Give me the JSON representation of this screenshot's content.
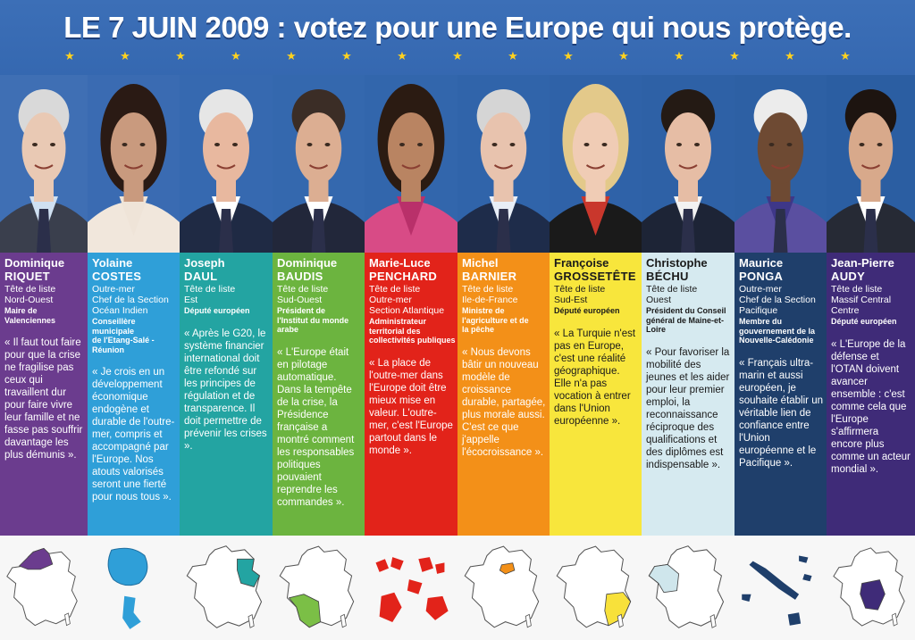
{
  "headline": "LE 7 JUIN 2009 : votez pour une Europe qui nous protège.",
  "colors": {
    "banner": "#3366b0",
    "star": "#ffd21f"
  },
  "candidates": [
    {
      "first": "Dominique",
      "last": "RIQUET",
      "info": "Tête de liste\nNord-Ouest",
      "detail": "Maire de\nValenciennes",
      "quote": "« Il faut tout faire pour que la crise ne fragilise pas ceux qui travaillent dur pour faire vivre leur famille et ne fasse pas souffrir davantage les plus démunis ».",
      "color": "#6b3c8e",
      "region_icon": "nord-ouest-region-map",
      "map_color": "#6b3c8e"
    },
    {
      "first": "Yolaine",
      "last": "COSTES",
      "info": "Outre-mer\nChef de la Section\nOcéan Indien",
      "detail": "Conseillère municipale\nde l'Etang-Salé - Réunion",
      "quote": "« Je crois en un développement économique endogène et durable de l'outre-mer, compris et accompagné par l'Europe. Nos atouts valorisés seront une fierté pour nous tous ».",
      "color": "#2f9fd8",
      "region_icon": "ocean-indien-region-map",
      "map_color": "#2f9fd8"
    },
    {
      "first": "Joseph",
      "last": "DAUL",
      "info": "Tête de liste\nEst",
      "detail": "Député européen",
      "quote": "« Après le G20, le système financier international doit être refondé sur les principes de régulation et de transparence. Il doit permettre de prévenir les crises ».",
      "color": "#23a4a2",
      "region_icon": "est-region-map",
      "map_color": "#23a4a2"
    },
    {
      "first": "Dominique",
      "last": "BAUDIS",
      "info": "Tête de liste\nSud-Ouest",
      "detail": "Président de\nl'Institut du monde\narabe",
      "quote": "« L'Europe était en pilotage automatique. Dans la tempête de la crise, la Présidence française a montré comment les responsables politiques pouvaient reprendre les commandes ».",
      "color": "#6cb43f",
      "region_icon": "sud-ouest-region-map",
      "map_color": "#7bbf46"
    },
    {
      "first": "Marie-Luce",
      "last": "PENCHARD",
      "info": "Tête de liste\nOutre-mer\nSection Atlantique",
      "detail": "Administrateur\nterritorial des\ncollectivités publiques",
      "quote": "« La place de l'outre-mer dans l'Europe doit être mieux mise en valeur. L'outre-mer, c'est l'Europe partout dans le monde ».",
      "color": "#e2231a",
      "region_icon": "atlantique-region-map",
      "map_color": "#e2231a"
    },
    {
      "first": "Michel",
      "last": "BARNIER",
      "info": "Tête de liste\nIle-de-France",
      "detail": "Ministre de\nl'agriculture et de\nla pêche",
      "quote": "« Nous devons bâtir un nouveau modèle de croissance durable, partagée, plus morale aussi. C'est ce que j'appelle l'écocroissance ».",
      "color": "#f39018",
      "region_icon": "ile-de-france-region-map",
      "map_color": "#f39018"
    },
    {
      "first": "Françoise",
      "last": "GROSSETÊTE",
      "info": "Tête de liste\nSud-Est",
      "detail": "Député européen",
      "quote": "« La Turquie n'est pas en Europe, c'est une réalité géographique. Elle n'a pas vocation à entrer dans l'Union européenne ».",
      "color": "#f8e63c",
      "region_icon": "sud-est-region-map",
      "map_color": "#f8e13a"
    },
    {
      "first": "Christophe",
      "last": "BÉCHU",
      "info": "Tête de liste\nOuest",
      "detail": "Président du Conseil\ngénéral de Maine-et-\nLoire",
      "quote": "« Pour favoriser la mobilité des jeunes et les aider pour leur premier emploi, la reconnaissance réciproque des qualifications et des diplômes est indispensable ».",
      "color": "#d6eaf0",
      "region_icon": "ouest-region-map",
      "map_color": "#cfe6ec"
    },
    {
      "first": "Maurice",
      "last": "PONGA",
      "info": "Outre-mer\nChef de la Section\nPacifique",
      "detail": "Membre du\ngouvernement de la\nNouvelle-Calédonie",
      "quote": "« Français ultra-marin et aussi européen, je souhaite établir un véritable lien de confiance entre l'Union européenne et le Pacifique ».",
      "color": "#1f3f6b",
      "region_icon": "pacifique-region-map",
      "map_color": "#1f3f6b"
    },
    {
      "first": "Jean-Pierre",
      "last": "AUDY",
      "info": "Tête de liste\nMassif Central\nCentre",
      "detail": "Député européen",
      "quote": "« L'Europe de la défense et l'OTAN doivent avancer ensemble : c'est comme cela que l'Europe s'affirmera encore plus comme un acteur mondial ».",
      "color": "#3f2b78",
      "region_icon": "massif-central-region-map",
      "map_color": "#3f2b78"
    }
  ]
}
